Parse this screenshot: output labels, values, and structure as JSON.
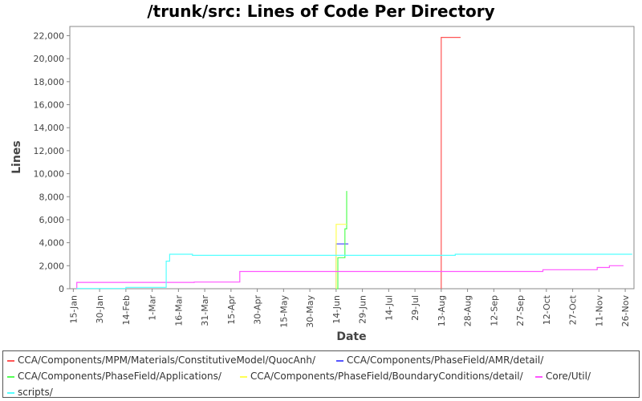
{
  "chart_data": {
    "type": "line",
    "title": "/trunk/src: Lines of Code Per Directory",
    "xlabel": "Date",
    "ylabel": "Lines",
    "x_ticks": [
      "15-Jan",
      "30-Jan",
      "14-Feb",
      "1-Mar",
      "16-Mar",
      "31-Mar",
      "15-Apr",
      "30-Apr",
      "15-May",
      "30-May",
      "14-Jun",
      "29-Jun",
      "14-Jul",
      "29-Jul",
      "13-Aug",
      "28-Aug",
      "12-Sep",
      "27-Sep",
      "12-Oct",
      "27-Oct",
      "11-Nov",
      "26-Nov"
    ],
    "y_ticks": [
      "0",
      "2,000",
      "4,000",
      "6,000",
      "8,000",
      "10,000",
      "12,000",
      "14,000",
      "16,000",
      "18,000",
      "20,000",
      "22,000"
    ],
    "ylim": [
      0,
      22800
    ],
    "grid": false,
    "legend_position": "bottom",
    "series": [
      {
        "name": "CCA/Components/MPM/Materials/ConstitutiveModel/QuocAnh/",
        "color": "#ff5555",
        "points": [
          [
            "13-Aug",
            0
          ],
          [
            "13-Aug",
            21850
          ],
          [
            "24-Aug",
            21850
          ]
        ]
      },
      {
        "name": "CCA/Components/PhaseField/AMR/detail/",
        "color": "#5555ff",
        "points": [
          [
            "14-Jun",
            0
          ],
          [
            "14-Jun",
            3900
          ],
          [
            "21-Jun",
            3900
          ]
        ]
      },
      {
        "name": "CCA/Components/PhaseField/Applications/",
        "color": "#55ff55",
        "points": [
          [
            "14-Jun",
            0
          ],
          [
            "15-Jun",
            0
          ],
          [
            "15-Jun",
            2700
          ],
          [
            "19-Jun",
            2700
          ],
          [
            "19-Jun",
            5200
          ],
          [
            "20-Jun",
            5200
          ],
          [
            "20-Jun",
            8500
          ]
        ]
      },
      {
        "name": "CCA/Components/PhaseField/BoundaryConditions/detail/",
        "color": "#ffff55",
        "points": [
          [
            "14-Jun",
            0
          ],
          [
            "14-Jun",
            5600
          ],
          [
            "20-Jun",
            5600
          ]
        ]
      },
      {
        "name": "Core/Util/",
        "color": "#ff55ff",
        "points": [
          [
            "17-Jan",
            0
          ],
          [
            "17-Jan",
            550
          ],
          [
            "25-Mar",
            550
          ],
          [
            "25-Mar",
            580
          ],
          [
            "20-Apr",
            580
          ],
          [
            "20-Apr",
            1500
          ],
          [
            "10-Oct",
            1500
          ],
          [
            "10-Oct",
            1650
          ],
          [
            "10-Nov",
            1650
          ],
          [
            "10-Nov",
            1850
          ],
          [
            "17-Nov",
            1850
          ],
          [
            "17-Nov",
            2000
          ],
          [
            "25-Nov",
            2000
          ]
        ]
      },
      {
        "name": "scripts/",
        "color": "#55ffff",
        "points": [
          [
            "17-Jan",
            0
          ],
          [
            "17-Jan",
            20
          ],
          [
            "14-Feb",
            20
          ],
          [
            "14-Feb",
            120
          ],
          [
            "9-Mar",
            120
          ],
          [
            "9-Mar",
            2400
          ],
          [
            "11-Mar",
            2400
          ],
          [
            "11-Mar",
            3000
          ],
          [
            "24-Mar",
            3000
          ],
          [
            "24-Mar",
            2900
          ],
          [
            "21-Aug",
            2900
          ],
          [
            "21-Aug",
            3000
          ],
          [
            "30-Nov",
            3000
          ]
        ]
      }
    ]
  }
}
